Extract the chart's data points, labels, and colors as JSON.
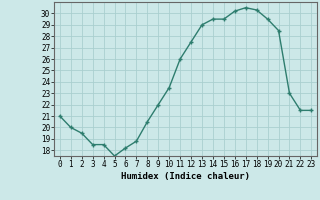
{
  "x": [
    0,
    1,
    2,
    3,
    4,
    5,
    6,
    7,
    8,
    9,
    10,
    11,
    12,
    13,
    14,
    15,
    16,
    17,
    18,
    19,
    20,
    21,
    22,
    23
  ],
  "y": [
    21.0,
    20.0,
    19.5,
    18.5,
    18.5,
    17.5,
    18.2,
    18.8,
    20.5,
    22.0,
    23.5,
    26.0,
    27.5,
    29.0,
    29.5,
    29.5,
    30.2,
    30.5,
    30.3,
    29.5,
    28.5,
    23.0,
    21.5,
    21.5
  ],
  "xlabel": "Humidex (Indice chaleur)",
  "line_color": "#2e7d6e",
  "marker": "+",
  "marker_size": 4,
  "bg_color": "#cce8e8",
  "grid_color": "#aacfcf",
  "ylim": [
    17.5,
    31.0
  ],
  "xlim": [
    -0.5,
    23.5
  ],
  "yticks": [
    18,
    19,
    20,
    21,
    22,
    23,
    24,
    25,
    26,
    27,
    28,
    29,
    30
  ],
  "xticks": [
    0,
    1,
    2,
    3,
    4,
    5,
    6,
    7,
    8,
    9,
    10,
    11,
    12,
    13,
    14,
    15,
    16,
    17,
    18,
    19,
    20,
    21,
    22,
    23
  ]
}
